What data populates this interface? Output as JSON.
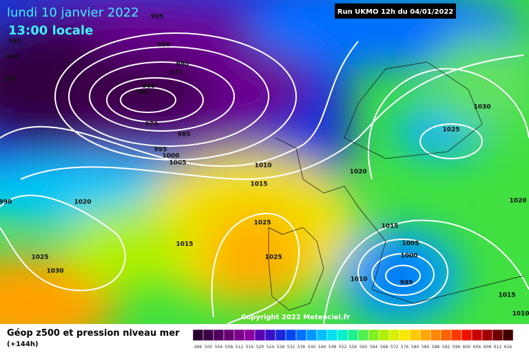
{
  "header": {
    "date": "lundi 10 janvier 2022",
    "time": "13:00 locale",
    "run": "Run UKMO 12h du 04/01/2022"
  },
  "isobar_labels": [
    995,
    985,
    985,
    990,
    990,
    980,
    975,
    965,
    960,
    970,
    985,
    995,
    1000,
    1005,
    1010,
    1015,
    1020,
    990,
    1020,
    1025,
    1015,
    1025,
    1030,
    1025,
    1030,
    1025,
    1020,
    1015,
    1005,
    1000,
    995,
    1010,
    1015,
    1010
  ],
  "copyright": "Copyright 2022 Meteociel.fr",
  "legend": {
    "title": "Géop z500 et pression niveau mer",
    "subtitle": "(+144h)",
    "scale": [
      496,
      500,
      504,
      508,
      512,
      516,
      520,
      524,
      528,
      532,
      536,
      540,
      544,
      548,
      552,
      556,
      560,
      564,
      568,
      572,
      576,
      580,
      584,
      588,
      592,
      596,
      600,
      604,
      608,
      612,
      616
    ],
    "colors": [
      "#2a0030",
      "#3c0048",
      "#50005e",
      "#660074",
      "#7a008a",
      "#8c00a0",
      "#5a00b4",
      "#3a10c8",
      "#1a28dc",
      "#0048f0",
      "#0070ff",
      "#0098ff",
      "#00c0ff",
      "#00e0f0",
      "#00f0c8",
      "#20f090",
      "#50f050",
      "#80f020",
      "#b0f000",
      "#d8f000",
      "#f8e800",
      "#ffc800",
      "#ffa800",
      "#ff8800",
      "#ff6000",
      "#ff3800",
      "#f01000",
      "#c80000",
      "#a00000",
      "#700000",
      "#400000"
    ]
  }
}
